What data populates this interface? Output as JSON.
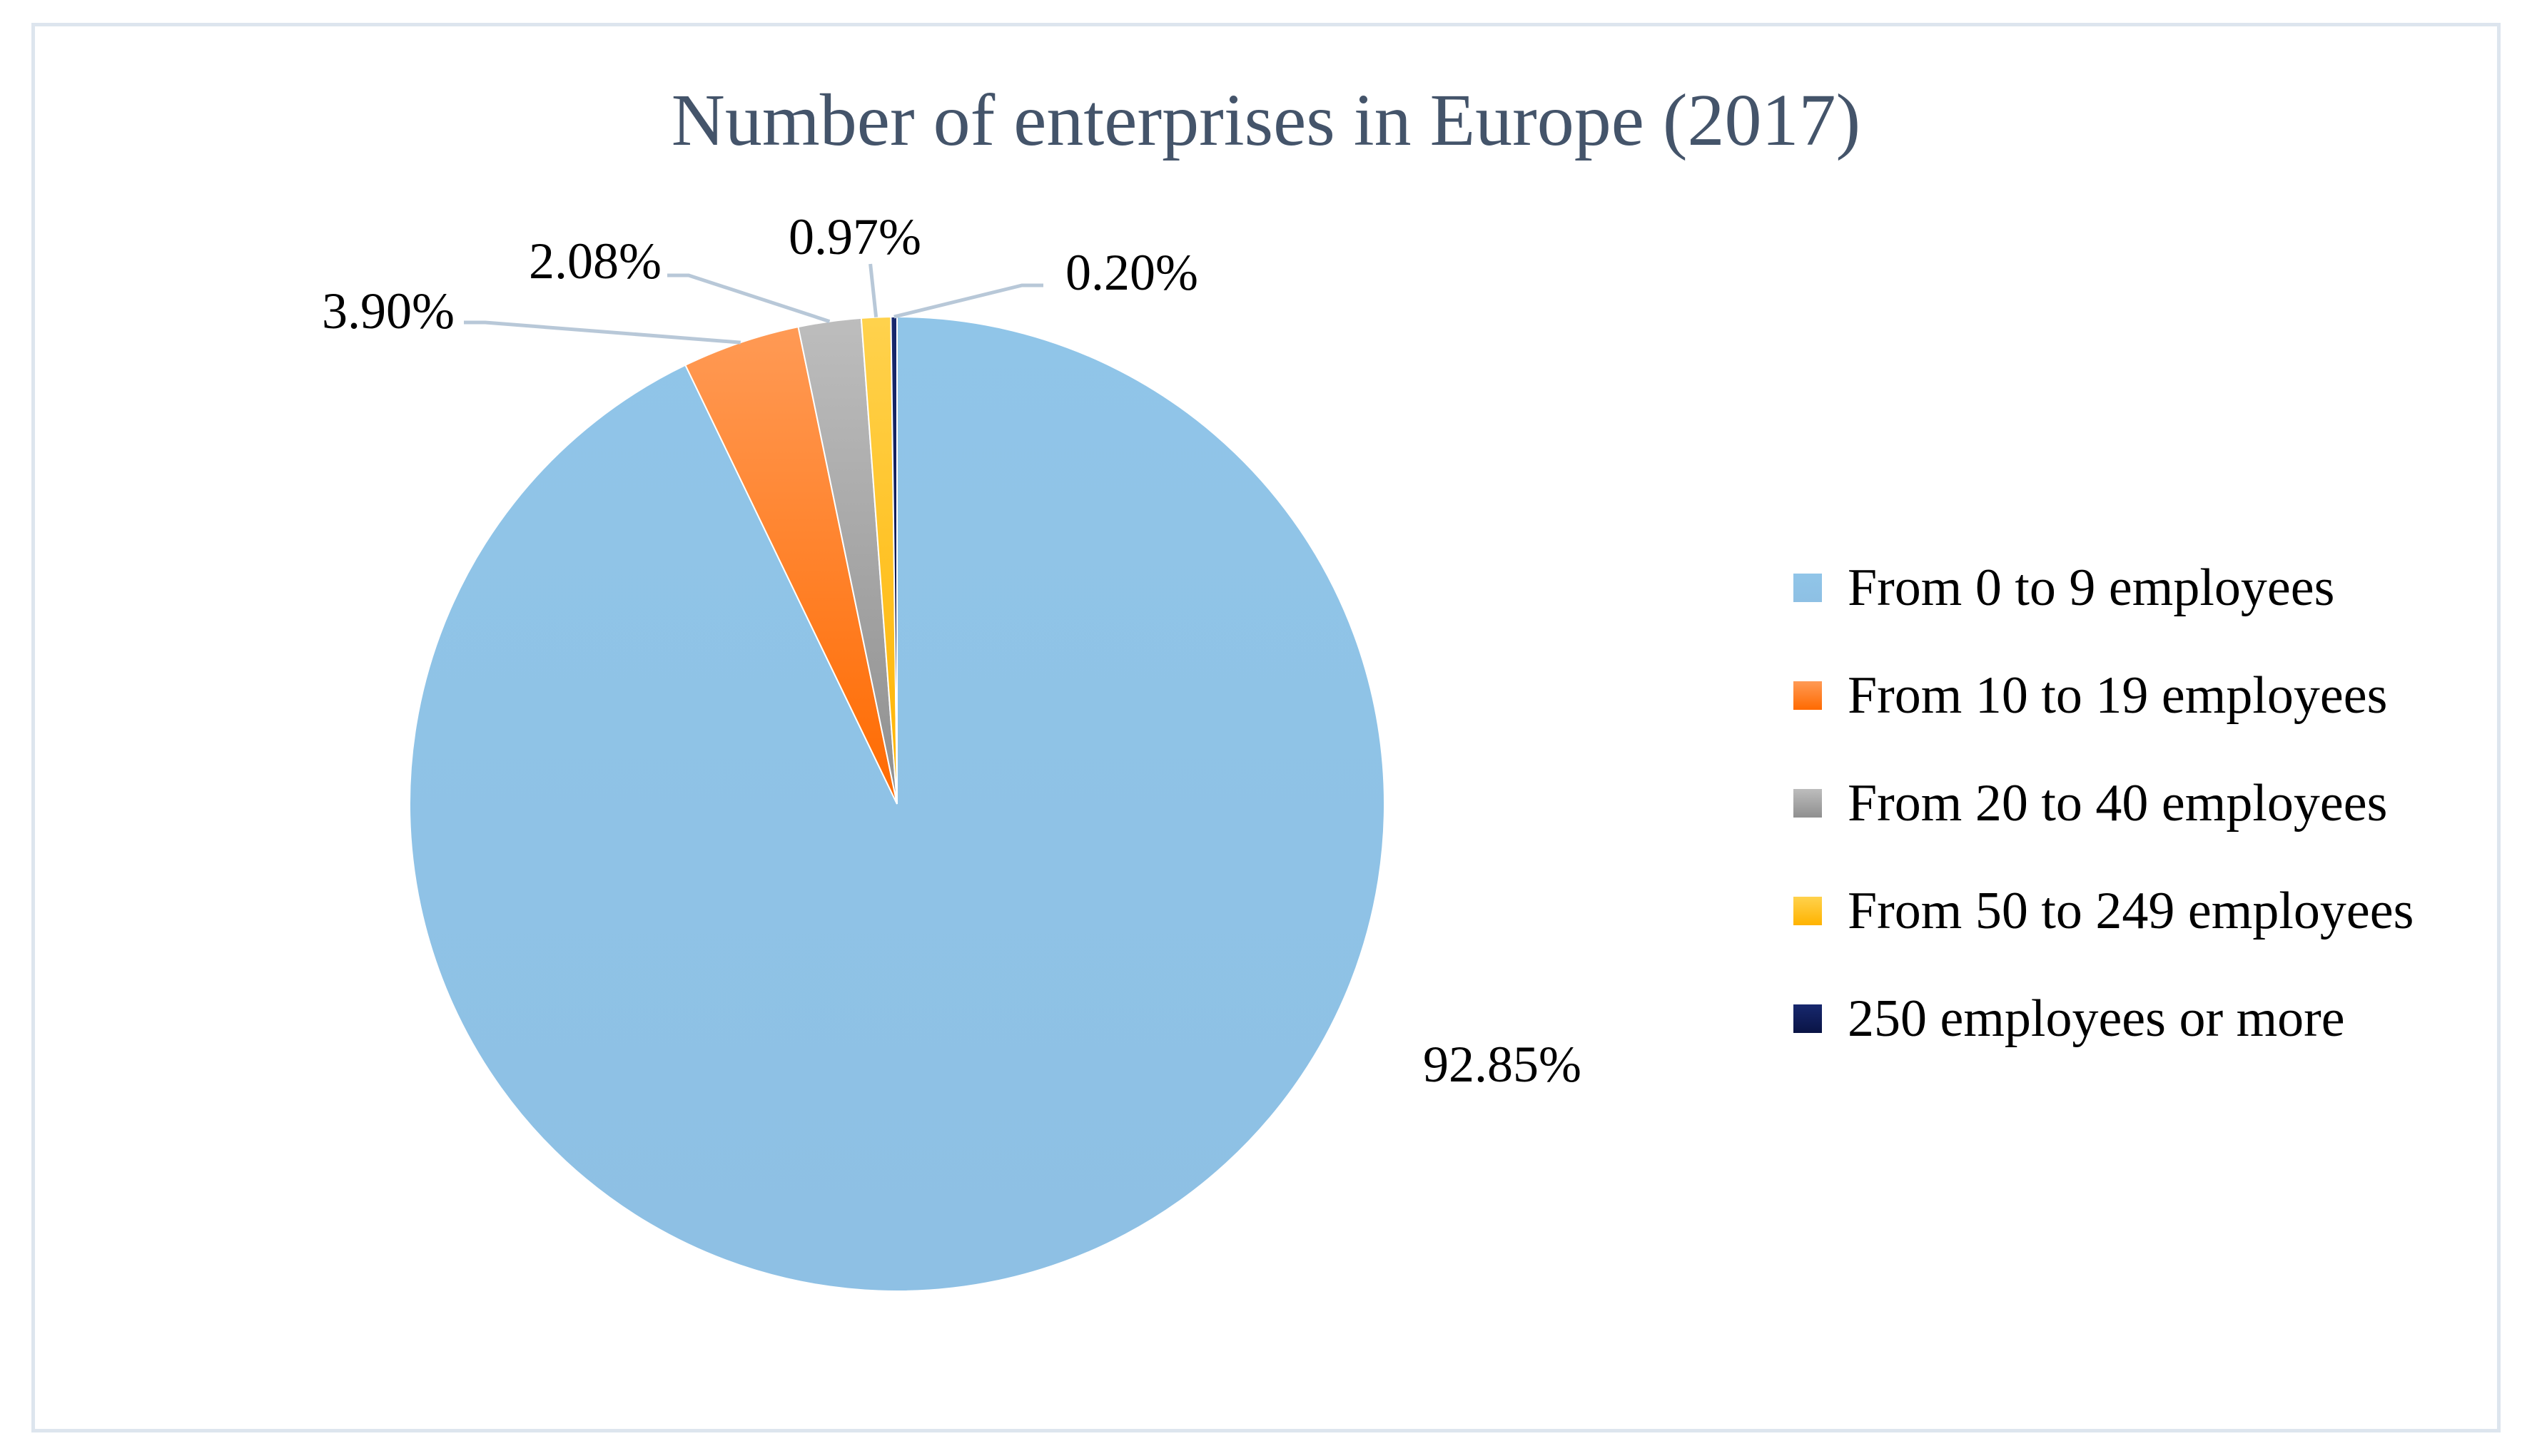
{
  "chart_data": {
    "type": "pie",
    "title": "Number of enterprises in Europe (2017)",
    "categories": [
      "From 0 to 9 employees",
      "From 10 to 19 employees",
      "From 20 to 40 employees",
      "From 50 to 249 employees",
      "250 employees or more"
    ],
    "values": [
      92.85,
      3.9,
      2.08,
      0.97,
      0.2
    ],
    "labels": [
      "92.85%",
      "3.90%",
      "2.08%",
      "0.97%",
      "0.20%"
    ],
    "colors": [
      "#8fc3e6",
      "#ff7a1f",
      "#a6a6a6",
      "#ffc000",
      "#0d1b5c"
    ],
    "legend_position": "right"
  }
}
